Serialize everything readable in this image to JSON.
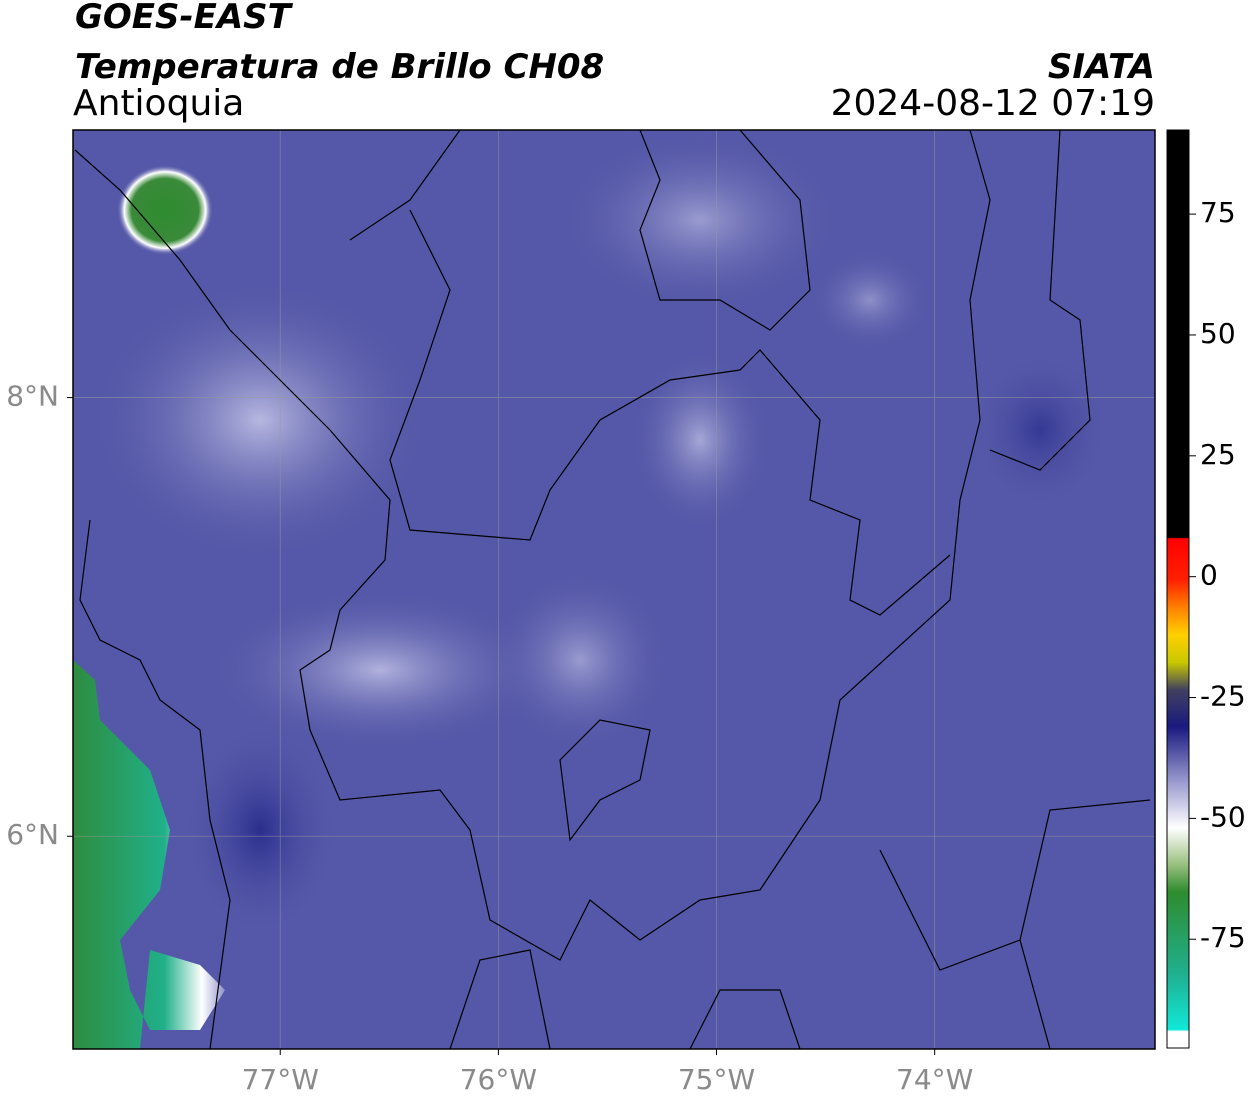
{
  "header": {
    "title": "GOES-EAST",
    "subtitle": "Temperatura de Brillo CH08",
    "region": "Antioquia",
    "source": "SIATA",
    "datetime": "2024-08-12 07:19"
  },
  "map": {
    "xlim": [
      -77.95,
      -72.99
    ],
    "ylim": [
      5.03,
      9.22
    ],
    "xticks": [
      {
        "value": -77,
        "label": "77°W"
      },
      {
        "value": -76,
        "label": "76°W"
      },
      {
        "value": -75,
        "label": "75°W"
      },
      {
        "value": -74,
        "label": "74°W"
      }
    ],
    "yticks": [
      {
        "value": 8,
        "label": "8°N"
      },
      {
        "value": 6,
        "label": "6°N"
      }
    ],
    "grid": true
  },
  "colorbar": {
    "lim": [
      -97.5,
      92.4
    ],
    "ticks": [
      75,
      50,
      25,
      0,
      -25,
      -50,
      -75
    ]
  }
}
